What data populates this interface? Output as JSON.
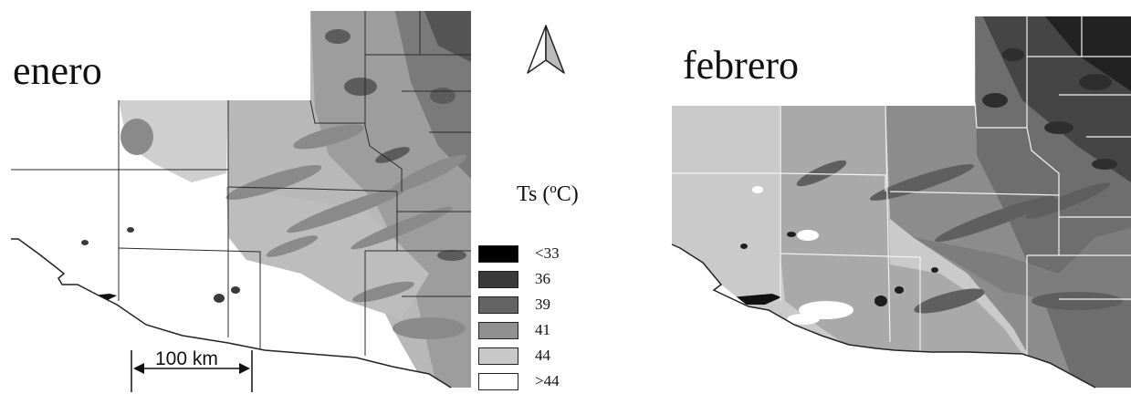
{
  "maps": [
    {
      "title": "enero",
      "style": {
        "base": "#ffffff",
        "stripe": "#9a9a9a",
        "blotch": "#6f6f6f",
        "border": "#2a2a2a"
      }
    },
    {
      "title": "febrero",
      "style": {
        "base": "#c7c7c7",
        "stripe": "#6a6a6a",
        "blotch": "#3a3a3a",
        "border": "#f2f2f2"
      }
    }
  ],
  "legend": {
    "title": "Ts (ºC)",
    "classes": [
      {
        "label": "<33",
        "color": "#000000"
      },
      {
        "label": "36",
        "color": "#3a3a3a"
      },
      {
        "label": "39",
        "color": "#646464"
      },
      {
        "label": "41",
        "color": "#909090"
      },
      {
        "label": "44",
        "color": "#c8c8c8"
      },
      {
        "label": ">44",
        "color": "#ffffff"
      }
    ]
  },
  "scale_bar": {
    "label": "100 km"
  },
  "north_arrow": {
    "icon": "north-arrow-icon"
  }
}
